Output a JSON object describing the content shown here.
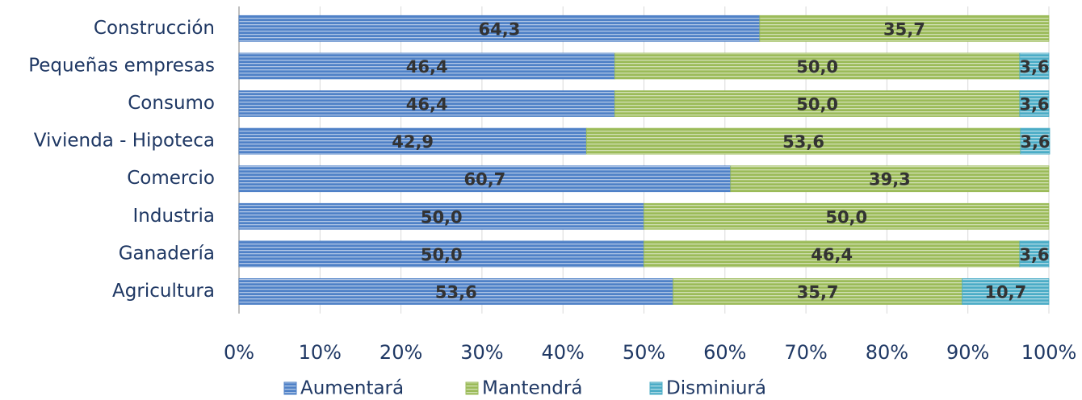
{
  "chart_data": {
    "type": "stacked-bar-horizontal",
    "categories": [
      "Construcción",
      "Pequeñas empresas",
      "Consumo",
      "Vivienda - Hipoteca",
      "Comercio",
      "Industria",
      "Ganadería",
      "Agricultura"
    ],
    "series": [
      {
        "name": "Aumentará",
        "color": "#4f81c7",
        "values": [
          64.3,
          46.4,
          46.4,
          42.9,
          60.7,
          50.0,
          50.0,
          53.6
        ],
        "value_labels": [
          "64,3",
          "46,4",
          "46,4",
          "42,9",
          "60,7",
          "50,0",
          "50,0",
          "53,6"
        ]
      },
      {
        "name": "Mantendrá",
        "color": "#9bbb59",
        "values": [
          35.7,
          50.0,
          50.0,
          53.6,
          39.3,
          50.0,
          46.4,
          35.7
        ],
        "value_labels": [
          "35,7",
          "50,0",
          "50,0",
          "53,6",
          "39,3",
          "50,0",
          "46,4",
          "35,7"
        ]
      },
      {
        "name": "Disminiurá",
        "color": "#4bacc6",
        "values": [
          null,
          3.6,
          3.6,
          3.6,
          null,
          null,
          3.6,
          10.7
        ],
        "value_labels": [
          null,
          "3,6",
          "3,6",
          "3,6",
          null,
          null,
          "3,6",
          "10,7"
        ]
      }
    ],
    "xlim": [
      0,
      100
    ],
    "xticks": [
      {
        "value": 0,
        "label": "0%"
      },
      {
        "value": 10,
        "label": "10%"
      },
      {
        "value": 20,
        "label": "20%"
      },
      {
        "value": 30,
        "label": "30%"
      },
      {
        "value": 40,
        "label": "40%"
      },
      {
        "value": 50,
        "label": "50%"
      },
      {
        "value": 60,
        "label": "60%"
      },
      {
        "value": 70,
        "label": "70%"
      },
      {
        "value": 80,
        "label": "80%"
      },
      {
        "value": 90,
        "label": "90%"
      },
      {
        "value": 100,
        "label": "100%"
      }
    ],
    "grid": true,
    "legend": "bottom"
  }
}
